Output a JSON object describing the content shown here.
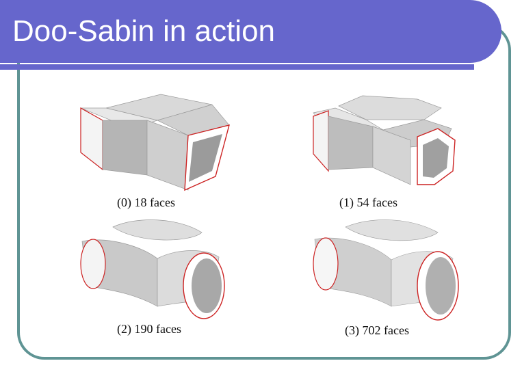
{
  "slide": {
    "title": "Doo-Sabin in action",
    "figures": [
      {
        "caption": "(0) 18 faces"
      },
      {
        "caption": "(1) 54 faces"
      },
      {
        "caption": "(2) 190 faces"
      },
      {
        "caption": "(3) 702 faces"
      }
    ]
  },
  "colors": {
    "title_bar": "#6666cc",
    "frame_border": "#5f9494",
    "mesh_edge": "#cc2222",
    "surface_light": "#f2f2f2",
    "surface_mid": "#c8c8c8",
    "surface_dark": "#8a8a8a"
  }
}
